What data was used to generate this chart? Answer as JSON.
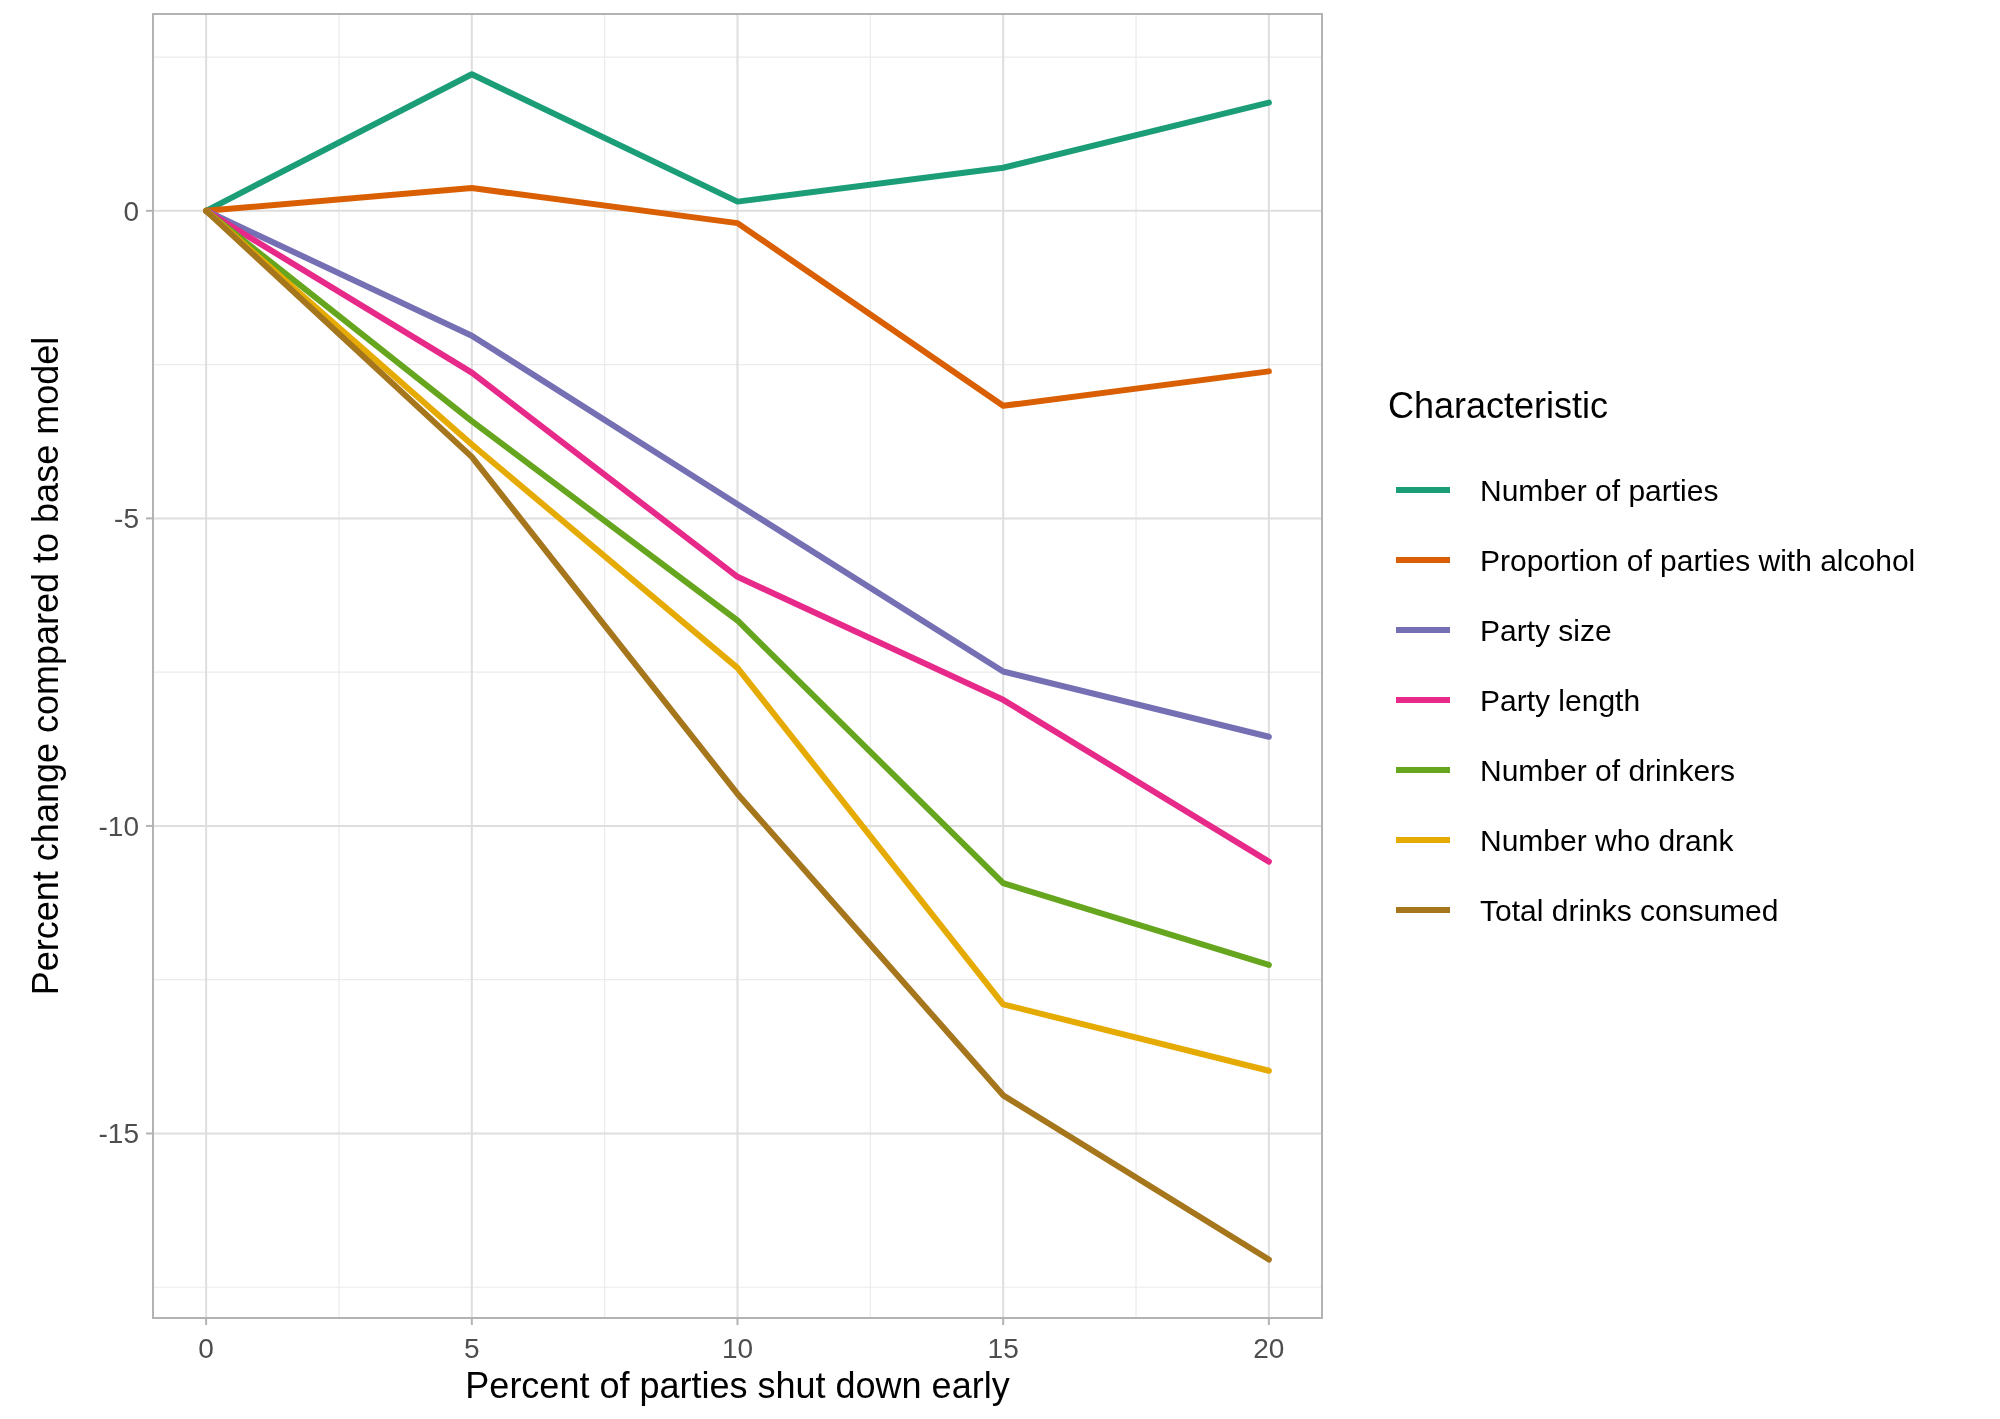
{
  "chart_data": {
    "type": "line",
    "xlabel": "Percent of parties shut down early",
    "ylabel": "Percent change compared to base model",
    "legend_title": "Characteristic",
    "x": [
      0,
      5,
      10,
      15,
      20
    ],
    "xlim": [
      -1,
      21
    ],
    "ylim": [
      -18,
      3.2
    ],
    "xticks": [
      0,
      5,
      10,
      15,
      20
    ],
    "yticks": [
      -15,
      -10,
      -5,
      0
    ],
    "grid": true,
    "legend": "right",
    "line_style": "solid",
    "marker": "none",
    "series": [
      {
        "name": "Number of parties",
        "color": "#1b9e77",
        "values": [
          0,
          2.22,
          0.15,
          0.7,
          1.76
        ]
      },
      {
        "name": "Proportion of parties with alcohol",
        "color": "#d95f02",
        "values": [
          0,
          0.37,
          -0.2,
          -3.17,
          -2.61
        ]
      },
      {
        "name": "Party size",
        "color": "#7570b3",
        "values": [
          0,
          -2.03,
          -4.77,
          -7.49,
          -8.55
        ]
      },
      {
        "name": "Party length",
        "color": "#e7298a",
        "values": [
          0,
          -2.63,
          -5.95,
          -7.95,
          -10.58
        ]
      },
      {
        "name": "Number of drinkers",
        "color": "#66a61e",
        "values": [
          0,
          -3.42,
          -6.66,
          -10.93,
          -12.26
        ]
      },
      {
        "name": "Number who drank",
        "color": "#e6ab02",
        "values": [
          0,
          -3.8,
          -7.43,
          -12.9,
          -13.98
        ]
      },
      {
        "name": "Total drinks consumed",
        "color": "#a6761d",
        "values": [
          0,
          -4.0,
          -9.48,
          -14.38,
          -17.05
        ]
      }
    ]
  }
}
